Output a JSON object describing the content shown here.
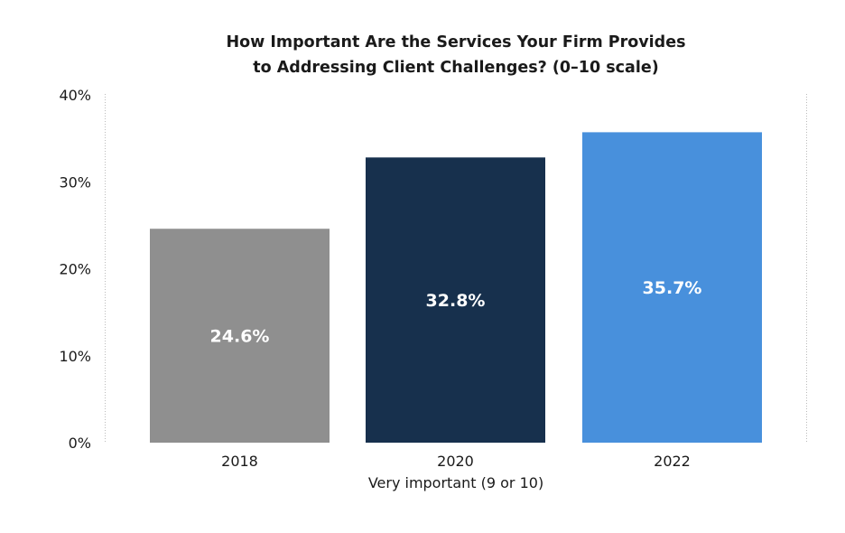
{
  "chart_data": {
    "type": "bar",
    "title": [
      "How Important Are the Services Your Firm Provides",
      "to Addressing Client Challenges? (0–10 scale)"
    ],
    "categories": [
      "2018",
      "2020",
      "2022"
    ],
    "values": [
      24.6,
      32.8,
      35.7
    ],
    "data_labels": [
      "24.6%",
      "32.8%",
      "35.7%"
    ],
    "colors": [
      "#8f8f8f",
      "#17304d",
      "#4890dc"
    ],
    "xlabel": "Very important (9 or 10)",
    "ylabel": "",
    "ylim": [
      0,
      40
    ],
    "yticks": [
      0,
      10,
      20,
      30,
      40
    ],
    "ytick_labels": [
      "0%",
      "10%",
      "20%",
      "30%",
      "40%"
    ],
    "grid": false
  }
}
